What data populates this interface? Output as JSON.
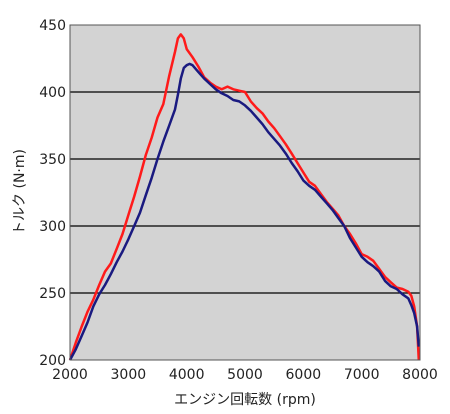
{
  "chart_data": {
    "type": "line",
    "title": "",
    "xlabel": "エンジン回転数 (rpm)",
    "ylabel": "トルク (N·m)",
    "xlim": [
      2000,
      8000
    ],
    "ylim": [
      200,
      450
    ],
    "xticks": [
      "2000",
      "3000",
      "4000",
      "5000",
      "6000",
      "7000",
      "8000"
    ],
    "yticks": [
      "200",
      "250",
      "300",
      "350",
      "400",
      "450"
    ],
    "grid": "horizontal",
    "legend": "none",
    "plot_background": "#d3d3d3",
    "series": [
      {
        "color": "#ff1a1a",
        "x": [
          2000,
          2100,
          2200,
          2300,
          2400,
          2500,
          2600,
          2700,
          2800,
          2900,
          3000,
          3100,
          3200,
          3300,
          3400,
          3500,
          3600,
          3700,
          3800,
          3850,
          3900,
          3950,
          4000,
          4100,
          4200,
          4300,
          4400,
          4500,
          4600,
          4700,
          4800,
          4900,
          5000,
          5100,
          5200,
          5300,
          5400,
          5500,
          5600,
          5700,
          5800,
          5900,
          6000,
          6100,
          6200,
          6300,
          6400,
          6500,
          6600,
          6700,
          6800,
          6900,
          7000,
          7100,
          7200,
          7300,
          7400,
          7500,
          7600,
          7700,
          7800,
          7850,
          7900,
          7950,
          7980
        ],
        "values": [
          200,
          213,
          225,
          236,
          245,
          256,
          266,
          272,
          283,
          294,
          308,
          322,
          337,
          353,
          366,
          381,
          391,
          412,
          430,
          440,
          443,
          440,
          432,
          426,
          419,
          411,
          407,
          404,
          402,
          404,
          402,
          401,
          400,
          393,
          388,
          384,
          378,
          373,
          367,
          361,
          354,
          347,
          340,
          333,
          330,
          324,
          318,
          313,
          308,
          300,
          294,
          287,
          279,
          277,
          274,
          268,
          262,
          258,
          254,
          253,
          251,
          248,
          240,
          225,
          200
        ]
      },
      {
        "color": "#1a1a80",
        "x": [
          2000,
          2100,
          2200,
          2300,
          2400,
          2500,
          2600,
          2700,
          2800,
          2900,
          3000,
          3100,
          3200,
          3300,
          3400,
          3500,
          3600,
          3700,
          3800,
          3850,
          3900,
          3950,
          4000,
          4050,
          4100,
          4200,
          4300,
          4400,
          4500,
          4600,
          4700,
          4800,
          4900,
          5000,
          5100,
          5200,
          5300,
          5400,
          5500,
          5600,
          5700,
          5800,
          5900,
          6000,
          6100,
          6200,
          6300,
          6400,
          6500,
          6600,
          6700,
          6800,
          6900,
          7000,
          7100,
          7200,
          7300,
          7400,
          7500,
          7600,
          7700,
          7800,
          7850,
          7900,
          7950,
          7980
        ],
        "values": [
          200,
          208,
          218,
          228,
          240,
          249,
          256,
          264,
          273,
          281,
          290,
          300,
          310,
          323,
          336,
          350,
          363,
          375,
          387,
          398,
          410,
          418,
          420,
          421,
          420,
          415,
          410,
          406,
          402,
          399,
          397,
          394,
          393,
          390,
          386,
          381,
          376,
          370,
          365,
          360,
          354,
          347,
          341,
          334,
          330,
          327,
          322,
          317,
          312,
          306,
          300,
          291,
          284,
          277,
          273,
          270,
          266,
          259,
          255,
          253,
          249,
          246,
          241,
          235,
          225,
          210
        ]
      }
    ]
  }
}
